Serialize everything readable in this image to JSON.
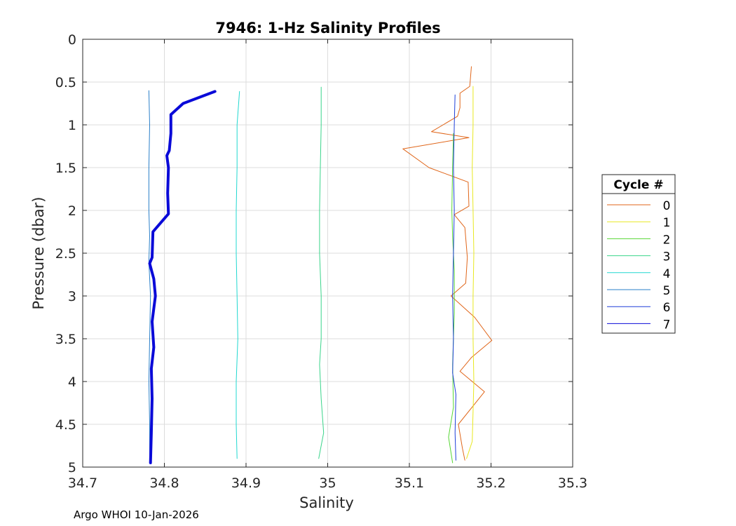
{
  "chart_data": {
    "type": "line",
    "title": "7946: 1-Hz Salinity Profiles",
    "xlabel": "Salinity",
    "ylabel": "Pressure (dbar)",
    "xlim": [
      34.7,
      35.3
    ],
    "ylim": [
      0,
      5
    ],
    "y_reversed": true,
    "grid": true,
    "xticks": [
      "34.7",
      "34.8",
      "34.9",
      "35",
      "35.1",
      "35.2",
      "35.3"
    ],
    "yticks": [
      "0",
      "0.5",
      "1",
      "1.5",
      "2",
      "2.5",
      "3",
      "3.5",
      "4",
      "4.5",
      "5"
    ],
    "legend": {
      "title": "Cycle #",
      "position": "outside-right"
    },
    "series": [
      {
        "name": "0",
        "color": "#e0661a",
        "width": 1,
        "points": [
          [
            35.176,
            0.32
          ],
          [
            35.174,
            0.55
          ],
          [
            35.162,
            0.63
          ],
          [
            35.162,
            0.8
          ],
          [
            35.159,
            0.9
          ],
          [
            35.127,
            1.08
          ],
          [
            35.173,
            1.15
          ],
          [
            35.092,
            1.28
          ],
          [
            35.124,
            1.5
          ],
          [
            35.172,
            1.67
          ],
          [
            35.173,
            1.95
          ],
          [
            35.155,
            2.05
          ],
          [
            35.168,
            2.2
          ],
          [
            35.171,
            2.55
          ],
          [
            35.169,
            2.85
          ],
          [
            35.151,
            3.0
          ],
          [
            35.18,
            3.25
          ],
          [
            35.201,
            3.52
          ],
          [
            35.176,
            3.72
          ],
          [
            35.162,
            3.88
          ],
          [
            35.192,
            4.12
          ],
          [
            35.16,
            4.5
          ],
          [
            35.165,
            4.78
          ],
          [
            35.168,
            4.92
          ]
        ]
      },
      {
        "name": "1",
        "color": "#e8e820",
        "width": 1,
        "points": [
          [
            35.178,
            0.55
          ],
          [
            35.178,
            1.0
          ],
          [
            35.177,
            1.5
          ],
          [
            35.178,
            2.0
          ],
          [
            35.179,
            2.5
          ],
          [
            35.178,
            3.0
          ],
          [
            35.178,
            3.5
          ],
          [
            35.179,
            4.0
          ],
          [
            35.178,
            4.35
          ],
          [
            35.177,
            4.7
          ],
          [
            35.17,
            4.9
          ]
        ]
      },
      {
        "name": "2",
        "color": "#55d633",
        "width": 1,
        "points": [
          [
            35.154,
            1.1
          ],
          [
            35.153,
            1.5
          ],
          [
            35.152,
            2.0
          ],
          [
            35.153,
            2.3
          ],
          [
            35.155,
            2.7
          ],
          [
            35.155,
            3.2
          ],
          [
            35.153,
            3.8
          ],
          [
            35.154,
            4.3
          ],
          [
            35.148,
            4.65
          ],
          [
            35.153,
            4.95
          ]
        ]
      },
      {
        "name": "3",
        "color": "#39d48a",
        "width": 1,
        "points": [
          [
            34.992,
            0.56
          ],
          [
            34.992,
            1.0
          ],
          [
            34.991,
            1.5
          ],
          [
            34.99,
            2.0
          ],
          [
            34.99,
            2.5
          ],
          [
            34.992,
            3.0
          ],
          [
            34.992,
            3.5
          ],
          [
            34.99,
            3.8
          ],
          [
            34.992,
            4.2
          ],
          [
            34.995,
            4.6
          ],
          [
            34.989,
            4.9
          ]
        ]
      },
      {
        "name": "4",
        "color": "#20d8d0",
        "width": 1,
        "points": [
          [
            34.892,
            0.61
          ],
          [
            34.889,
            1.0
          ],
          [
            34.889,
            1.5
          ],
          [
            34.888,
            2.0
          ],
          [
            34.888,
            2.5
          ],
          [
            34.889,
            3.0
          ],
          [
            34.89,
            3.5
          ],
          [
            34.888,
            4.0
          ],
          [
            34.888,
            4.5
          ],
          [
            34.889,
            4.9
          ]
        ]
      },
      {
        "name": "5",
        "color": "#2a7fc9",
        "width": 1,
        "points": [
          [
            34.781,
            0.6
          ],
          [
            34.782,
            1.0
          ],
          [
            34.781,
            1.5
          ],
          [
            34.781,
            2.0
          ],
          [
            34.782,
            2.3
          ],
          [
            34.781,
            2.6
          ],
          [
            34.783,
            3.0
          ],
          [
            34.782,
            3.5
          ],
          [
            34.781,
            4.0
          ],
          [
            34.782,
            4.5
          ],
          [
            34.782,
            4.95
          ]
        ]
      },
      {
        "name": "6",
        "color": "#1e3fd9",
        "width": 1,
        "points": [
          [
            35.156,
            0.65
          ],
          [
            35.155,
            1.0
          ],
          [
            35.154,
            1.5
          ],
          [
            35.155,
            2.0
          ],
          [
            35.154,
            2.5
          ],
          [
            35.153,
            3.0
          ],
          [
            35.154,
            3.5
          ],
          [
            35.153,
            3.9
          ],
          [
            35.157,
            4.15
          ],
          [
            35.156,
            4.6
          ],
          [
            35.157,
            4.92
          ]
        ]
      },
      {
        "name": "7",
        "color": "#0a0ad8",
        "width": 4,
        "points": [
          [
            34.862,
            0.61
          ],
          [
            34.823,
            0.75
          ],
          [
            34.808,
            0.88
          ],
          [
            34.808,
            1.1
          ],
          [
            34.806,
            1.3
          ],
          [
            34.803,
            1.36
          ],
          [
            34.805,
            1.5
          ],
          [
            34.804,
            1.8
          ],
          [
            34.805,
            2.04
          ],
          [
            34.795,
            2.15
          ],
          [
            34.786,
            2.25
          ],
          [
            34.785,
            2.55
          ],
          [
            34.782,
            2.62
          ],
          [
            34.787,
            2.8
          ],
          [
            34.789,
            3.0
          ],
          [
            34.785,
            3.3
          ],
          [
            34.787,
            3.6
          ],
          [
            34.784,
            3.85
          ],
          [
            34.785,
            4.2
          ],
          [
            34.784,
            4.6
          ],
          [
            34.783,
            4.95
          ]
        ]
      }
    ]
  },
  "footer": "Argo WHOI 10-Jan-2026"
}
